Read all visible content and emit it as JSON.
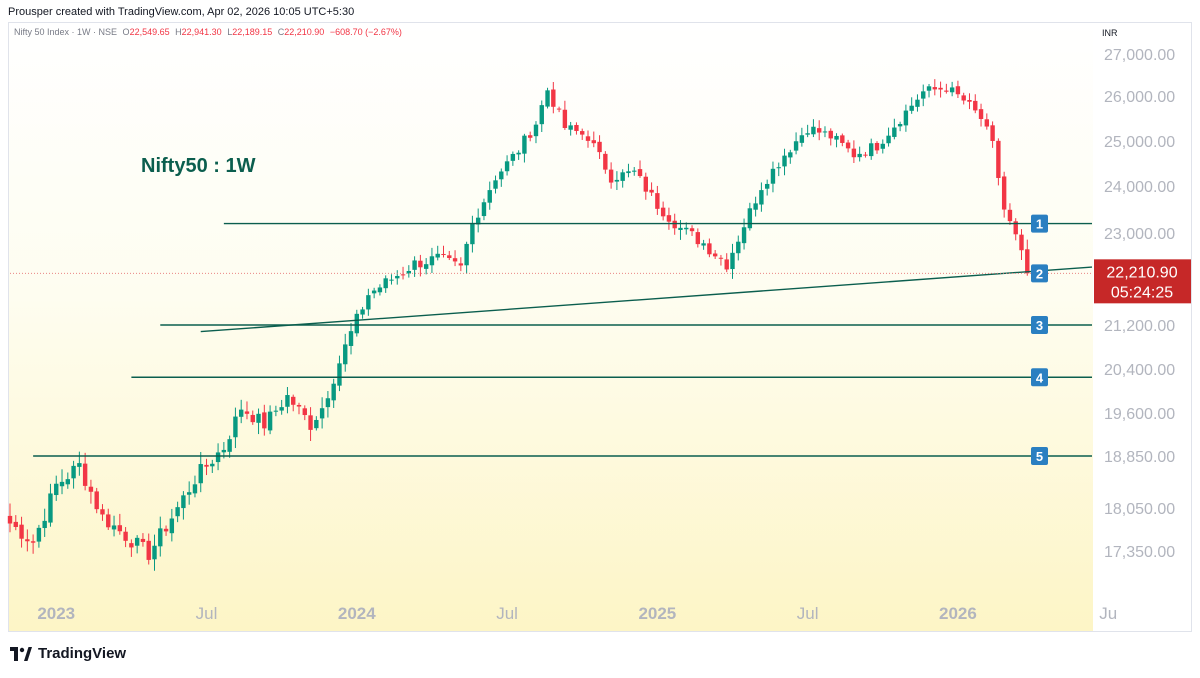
{
  "header": {
    "attribution": "Prousper created with TradingView.com, Apr 02, 2026 10:05 UTC+5:30"
  },
  "legend": {
    "symbol": "Nifty 50 Index · 1W · NSE",
    "o_label": "O",
    "o_value": "22,549.65",
    "h_label": "H",
    "h_value": "22,941.30",
    "l_label": "L",
    "l_value": "22,189.15",
    "c_label": "C",
    "c_value": "22,210.90",
    "change": "−608.70 (−2.67%)"
  },
  "footer": {
    "brand": "TradingView"
  },
  "colors": {
    "up": "#089981",
    "down": "#f23645",
    "line": "#0b5e4e",
    "label_bg": "#2a7fc1",
    "price_bg": "#c62828",
    "axis_text": "#b2b5be"
  },
  "chart_data": {
    "type": "candlestick",
    "title": "Nifty50 : 1W",
    "currency": "INR",
    "y_ticks": [
      {
        "label": "27,000.00",
        "value": 27000
      },
      {
        "label": "26,000.00",
        "value": 26000
      },
      {
        "label": "25,000.00",
        "value": 25000
      },
      {
        "label": "24,000.00",
        "value": 24000
      },
      {
        "label": "23,000.00",
        "value": 23000
      },
      {
        "label": "21,200.00",
        "value": 21200
      },
      {
        "label": "20,400.00",
        "value": 20400
      },
      {
        "label": "19,600.00",
        "value": 19600
      },
      {
        "label": "18,850.00",
        "value": 18850
      },
      {
        "label": "18,050.00",
        "value": 18050
      },
      {
        "label": "17,350.00",
        "value": 17350
      }
    ],
    "x_ticks": [
      {
        "label": "2023",
        "week": 8,
        "bold": true
      },
      {
        "label": "Jul",
        "week": 34,
        "bold": false
      },
      {
        "label": "2024",
        "week": 60,
        "bold": true
      },
      {
        "label": "Jul",
        "week": 86,
        "bold": false
      },
      {
        "label": "2025",
        "week": 112,
        "bold": true
      },
      {
        "label": "Jul",
        "week": 138,
        "bold": false
      },
      {
        "label": "2026",
        "week": 164,
        "bold": true
      },
      {
        "label": "Ju",
        "week": 190,
        "bold": false
      }
    ],
    "last_price": {
      "value": 22210.9,
      "label": "22,210.90",
      "countdown": "05:24:25"
    },
    "levels": [
      {
        "id": "1",
        "value": 23200,
        "from_week": 37
      },
      {
        "id": "2",
        "value": 22210.9,
        "from_week": 170,
        "label_only": true
      },
      {
        "id": "3",
        "value": 21200,
        "from_week": 26
      },
      {
        "id": "4",
        "value": 20250,
        "from_week": 21
      },
      {
        "id": "5",
        "value": 18850,
        "from_week": 4
      }
    ],
    "trendline": {
      "start_week": 33,
      "start_value": 21080,
      "end_week": 183,
      "end_value": 22300
    },
    "close_anchors": [
      [
        0,
        17800
      ],
      [
        4,
        17500
      ],
      [
        8,
        18400
      ],
      [
        12,
        18700
      ],
      [
        16,
        17900
      ],
      [
        20,
        17600
      ],
      [
        24,
        17300
      ],
      [
        28,
        17900
      ],
      [
        32,
        18500
      ],
      [
        37,
        19000
      ],
      [
        40,
        19700
      ],
      [
        44,
        19400
      ],
      [
        48,
        19900
      ],
      [
        52,
        19400
      ],
      [
        54,
        19700
      ],
      [
        58,
        20800
      ],
      [
        62,
        21800
      ],
      [
        66,
        22100
      ],
      [
        70,
        22400
      ],
      [
        74,
        22500
      ],
      [
        78,
        22300
      ],
      [
        80,
        23200
      ],
      [
        84,
        24200
      ],
      [
        88,
        24800
      ],
      [
        91,
        25400
      ],
      [
        93,
        26150
      ],
      [
        96,
        25300
      ],
      [
        100,
        25100
      ],
      [
        104,
        24200
      ],
      [
        108,
        24300
      ],
      [
        112,
        23600
      ],
      [
        116,
        23100
      ],
      [
        120,
        22800
      ],
      [
        124,
        22400
      ],
      [
        126,
        22900
      ],
      [
        130,
        24000
      ],
      [
        134,
        24700
      ],
      [
        138,
        25300
      ],
      [
        142,
        25100
      ],
      [
        146,
        24700
      ],
      [
        150,
        24900
      ],
      [
        154,
        25500
      ],
      [
        158,
        26100
      ],
      [
        162,
        26200
      ],
      [
        165,
        25900
      ],
      [
        168,
        25500
      ],
      [
        170,
        24900
      ],
      [
        172,
        23500
      ],
      [
        174,
        22900
      ],
      [
        176,
        22210
      ]
    ]
  }
}
